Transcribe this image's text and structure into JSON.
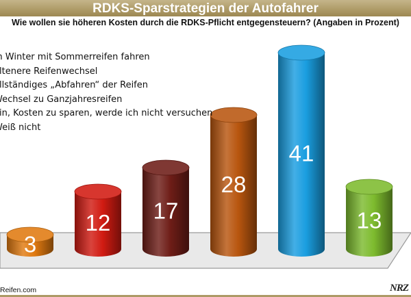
{
  "header": {
    "title": "RDKS-Sparstrategien der Autofahrer",
    "subtitle": "Wie wollen sie höheren Kosten durch die RDKS-Pflicht entgegensteuern? (Angaben in Prozent)"
  },
  "footer": {
    "source": "Reifen.com",
    "logo": "NRZ"
  },
  "chart_data": {
    "type": "bar",
    "title": "RDKS-Sparstrategien der Autofahrer",
    "subtitle": "Wie wollen sie höheren Kosten durch die RDKS-Pflicht entgegensteuern? (Angaben in Prozent)",
    "categories": [
      "m Winter mit Sommerreifen fahren",
      "eltenere Reifenwechsel",
      "ollständiges „Abfahren“ der Reifen",
      "Wechsel zu Ganzjahresreifen",
      "ein, Kosten zu sparen, werde ich nicht versuchen",
      "Weiß nicht"
    ],
    "values": [
      3,
      12,
      17,
      28,
      41,
      13
    ],
    "colors": [
      "#e07a10",
      "#d11b12",
      "#6e1d17",
      "#b8560f",
      "#1a9ee0",
      "#7dbb2e"
    ],
    "ylim": [
      0,
      41
    ],
    "grid": false,
    "legend": "top-left"
  }
}
